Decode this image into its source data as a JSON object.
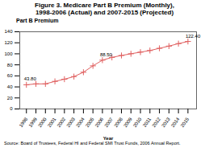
{
  "chart_data": {
    "type": "line",
    "title": "Figure 3. Medicare Part B Premium (Monthly),\n1998-2006 (Actual) and 2007-2015 (Projected)",
    "ylabel": "Part B Premium",
    "xlabel": "Year",
    "source": "Source: Board of Trustees, Federal HI and Federal SMI Trust Funds, 2006 Annual Report.",
    "x": [
      1998,
      1999,
      2000,
      2001,
      2002,
      2003,
      2004,
      2005,
      2006,
      2007,
      2008,
      2009,
      2010,
      2011,
      2012,
      2013,
      2014,
      2015
    ],
    "values": [
      43.8,
      45.5,
      45.5,
      50.0,
      54.0,
      58.7,
      66.6,
      78.2,
      88.5,
      93.5,
      97.0,
      100.1,
      103.0,
      106.0,
      110.0,
      114.0,
      118.5,
      122.4
    ],
    "color": "#e06060",
    "marker": "plus",
    "xlim": [
      1997.3,
      2015.9
    ],
    "xticks": [
      1998,
      1999,
      2000,
      2001,
      2002,
      2003,
      2004,
      2005,
      2006,
      2007,
      2008,
      2009,
      2010,
      2011,
      2012,
      2013,
      2014,
      2015
    ],
    "ylim": [
      0,
      140
    ],
    "yticks": [
      0,
      20,
      40,
      60,
      80,
      100,
      120,
      140
    ],
    "grid": false,
    "annotations": [
      {
        "x": 1998,
        "y": 43.8,
        "text": "43.80"
      },
      {
        "x": 2006,
        "y": 88.5,
        "text": "88.50"
      },
      {
        "x": 2015,
        "y": 122.4,
        "text": "122.40"
      }
    ]
  }
}
